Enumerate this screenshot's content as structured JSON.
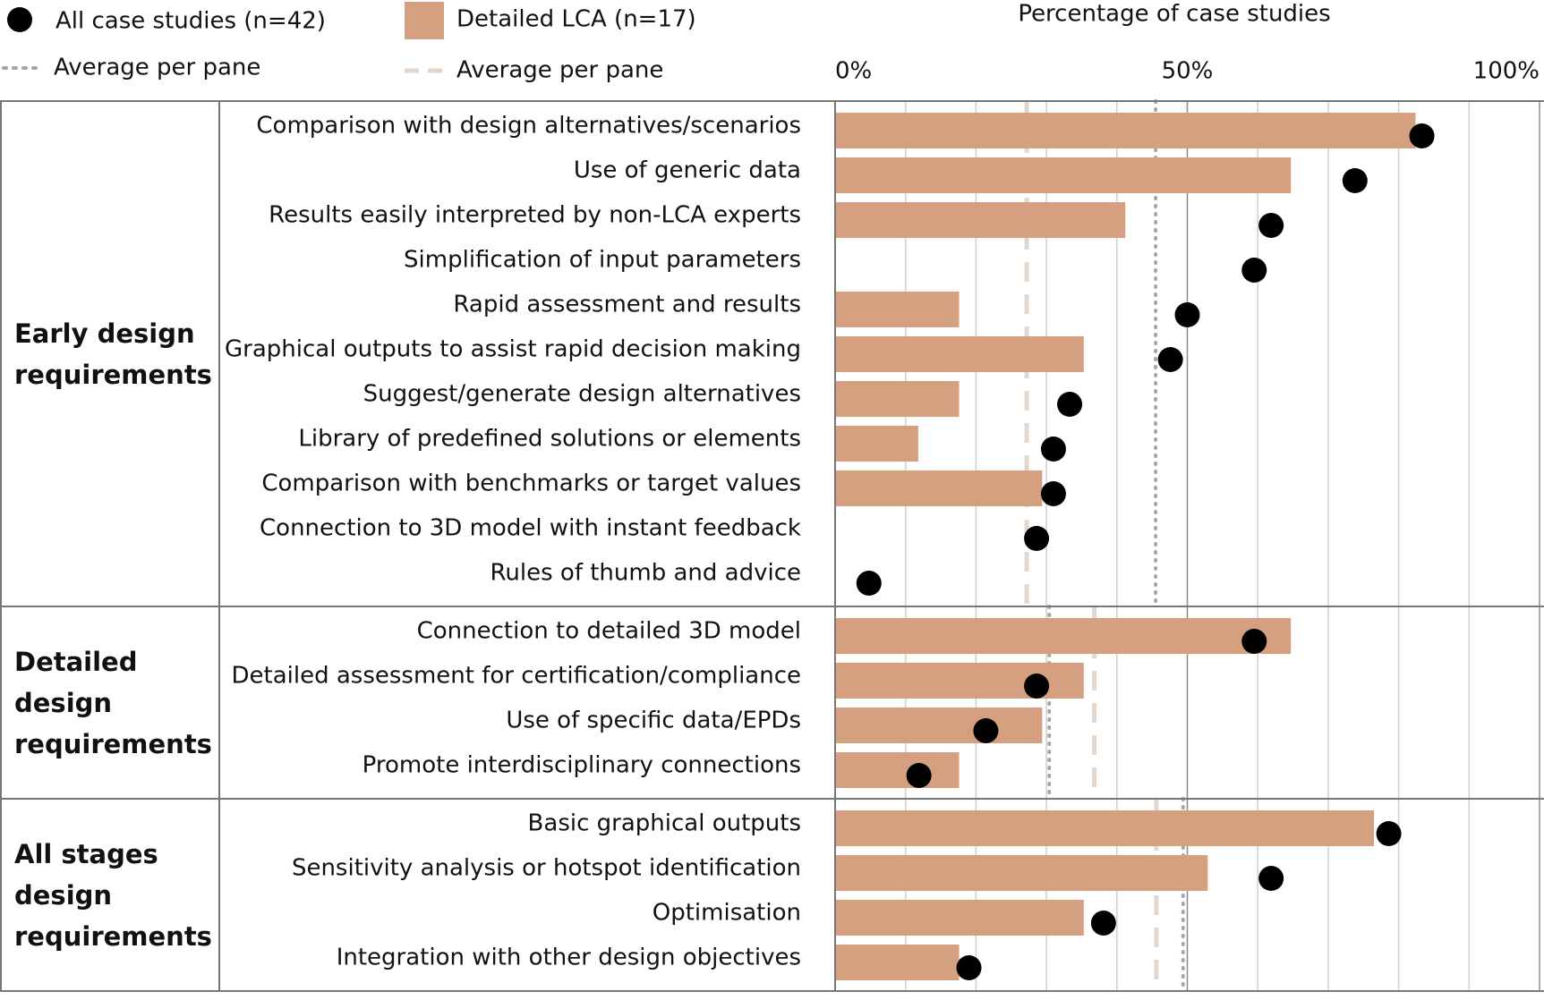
{
  "chart_data": {
    "type": "bar",
    "orientation": "horizontal",
    "x_label": "Percentage of case studies",
    "xlim": [
      0,
      100
    ],
    "xticks": [
      {
        "value": 0,
        "label": "0%"
      },
      {
        "value": 50,
        "label": "50%"
      },
      {
        "value": 100,
        "label": "100%"
      }
    ],
    "xgrid": [
      10,
      20,
      30,
      40,
      60,
      70,
      80,
      90
    ],
    "series": [
      {
        "name": "All case studies (n=42)",
        "color": "#000000",
        "marker": "dot",
        "average_name": "Average per pane",
        "average_color": "#a6a6a6",
        "average_style": "dotted"
      },
      {
        "name": "Detailed LCA (n=17)",
        "color": "#d4a07f",
        "marker": "bar",
        "average_name": "Average per pane",
        "average_color": "#e3d6cd",
        "average_style": "dashed"
      }
    ],
    "groups": [
      {
        "name": "Early design requirements",
        "categories": [
          "Comparison with design alternatives/scenarios",
          "Use of generic data",
          "Results easily interpreted by non-LCA experts",
          "Simplification of input parameters",
          "Rapid assessment and results",
          "Graphical outputs to assist rapid decision making",
          "Suggest/generate design alternatives",
          "Library of predefined solutions or elements",
          "Comparison with benchmarks or target values",
          "Connection to 3D model with instant feedback",
          "Rules of thumb and advice"
        ],
        "series": [
          {
            "values": [
              83.3,
              73.8,
              61.9,
              59.5,
              50,
              47.6,
              33.3,
              31.0,
              31.0,
              28.6,
              4.8
            ],
            "average": 45.5
          },
          {
            "values": [
              82.4,
              64.7,
              41.2,
              0,
              17.6,
              35.3,
              17.6,
              11.8,
              29.4,
              0,
              0
            ],
            "average": 27.2
          }
        ]
      },
      {
        "name": "Detailed design requirements",
        "categories": [
          "Connection to detailed 3D model",
          "Detailed assessment for certification/compliance",
          "Use of specific data/EPDs",
          "Promote interdisciplinary connections"
        ],
        "series": [
          {
            "values": [
              59.5,
              28.6,
              21.4,
              11.9
            ],
            "average": 30.4
          },
          {
            "values": [
              64.7,
              35.3,
              29.4,
              17.6
            ],
            "average": 36.8
          }
        ]
      },
      {
        "name": "All stages design requirements",
        "categories": [
          "Basic graphical outputs",
          "Sensitivity analysis or hotspot identification",
          "Optimisation",
          "Integration with other design objectives"
        ],
        "series": [
          {
            "values": [
              78.6,
              61.9,
              38.1,
              19.0
            ],
            "average": 49.4
          },
          {
            "values": [
              76.5,
              52.9,
              35.3,
              17.6
            ],
            "average": 45.6
          }
        ]
      }
    ]
  }
}
